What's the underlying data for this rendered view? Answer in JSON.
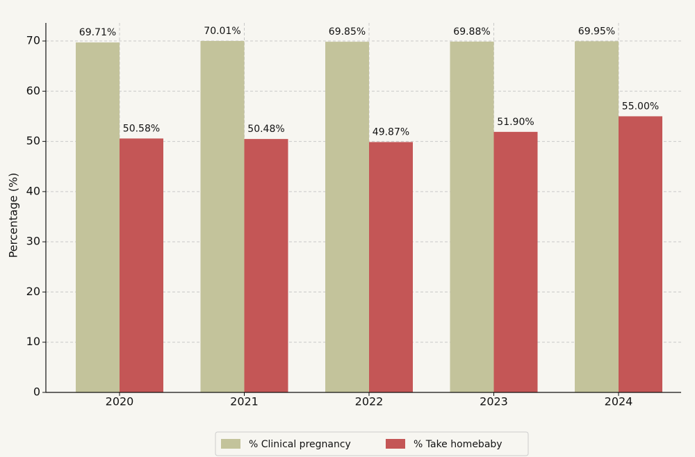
{
  "chart_data": {
    "type": "bar",
    "y_label": "Percentage (%)",
    "categories": [
      "2020",
      "2021",
      "2022",
      "2023",
      "2024"
    ],
    "series": [
      {
        "name": "% Clinical pregnancy",
        "color": "#c3c39b",
        "values": [
          69.71,
          70.01,
          69.85,
          69.88,
          69.95
        ],
        "value_labels": [
          "69.71%",
          "70.01%",
          "69.85%",
          "69.88%",
          "69.95%"
        ]
      },
      {
        "name": "% Take homebaby",
        "color": "#c45656",
        "values": [
          50.58,
          50.48,
          49.87,
          51.9,
          55.0
        ],
        "value_labels": [
          "50.58%",
          "50.48%",
          "49.87%",
          "51.90%",
          "55.00%"
        ]
      }
    ],
    "ylim": [
      0,
      73.6
    ],
    "yticks": [
      0,
      10,
      20,
      30,
      40,
      50,
      60,
      70
    ],
    "grid": true,
    "legend": "bottom"
  }
}
